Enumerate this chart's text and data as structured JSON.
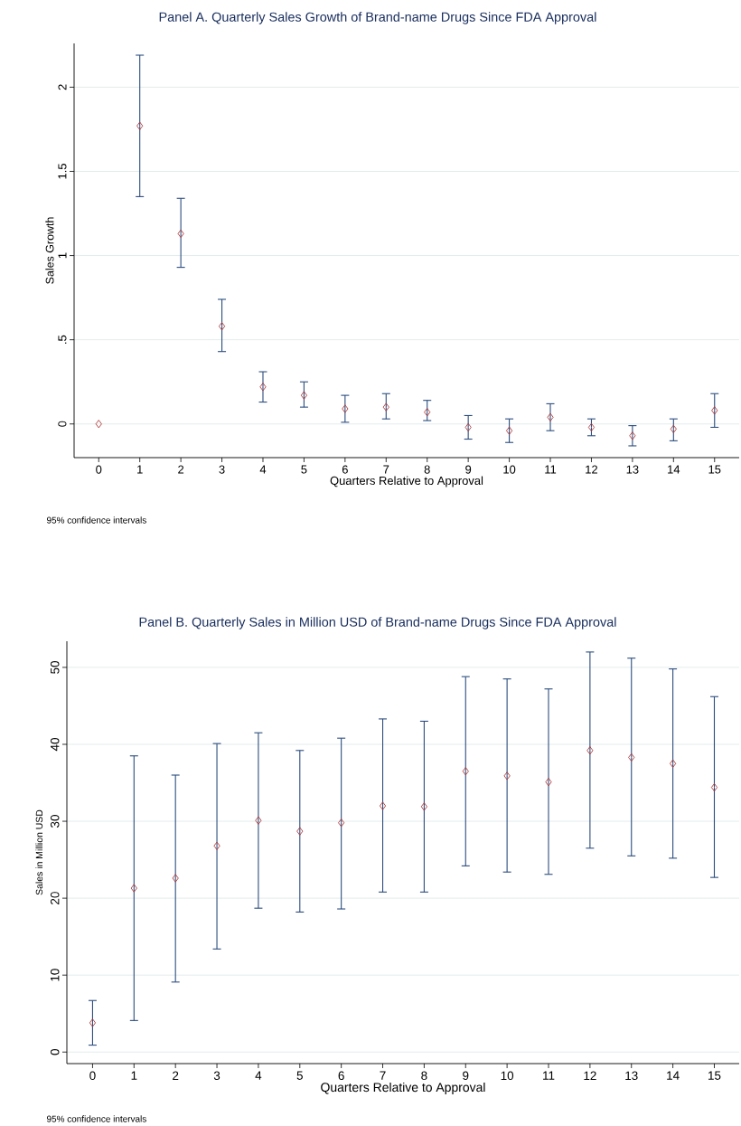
{
  "chart_data": [
    {
      "type": "scatter",
      "title": "Panel A. Quarterly Sales Growth of Brand-name Drugs Since FDA Approval",
      "xlabel": "Quarters Relative to Approval",
      "ylabel": "Sales Growth",
      "annotations": [
        "95% confidence intervals"
      ],
      "x": [
        0,
        1,
        2,
        3,
        4,
        5,
        6,
        7,
        8,
        9,
        10,
        11,
        12,
        13,
        14,
        15
      ],
      "series": [
        {
          "color": "#b03a3a",
          "values": [
            0,
            1.77,
            1.13,
            0.58,
            0.22,
            0.17,
            0.09,
            0.1,
            0.07,
            -0.02,
            -0.04,
            0.04,
            -0.02,
            -0.07,
            -0.03,
            0.08
          ],
          "errors": [
            null,
            [
              1.35,
              2.19
            ],
            [
              0.93,
              1.34
            ],
            [
              0.43,
              0.74
            ],
            [
              0.13,
              0.31
            ],
            [
              0.1,
              0.25
            ],
            [
              0.01,
              0.17
            ],
            [
              0.03,
              0.18
            ],
            [
              0.02,
              0.14
            ],
            [
              -0.09,
              0.05
            ],
            [
              -0.11,
              0.03
            ],
            [
              -0.04,
              0.12
            ],
            [
              -0.07,
              0.03
            ],
            [
              -0.13,
              -0.01
            ],
            [
              -0.1,
              0.03
            ],
            [
              -0.02,
              0.18
            ]
          ]
        }
      ],
      "xlim": [
        -0.6,
        15.6
      ],
      "ylim": [
        -0.2,
        2.26
      ],
      "xticks": [
        0,
        1,
        2,
        3,
        4,
        5,
        6,
        7,
        8,
        9,
        10,
        11,
        12,
        13,
        14,
        15
      ],
      "yticks": [
        0,
        {
          "value": 0.5,
          "label": ".5"
        },
        1,
        1.5,
        2
      ],
      "grid": "y",
      "marker": "diamond"
    },
    {
      "type": "scatter",
      "title": "Panel B. Quarterly Sales in Million USD of Brand-name Drugs Since FDA Approval",
      "xlabel": "Quarters Relative to Approval",
      "ylabel": "Sales in Million USD",
      "annotations": [
        "95% confidence intervals"
      ],
      "x": [
        0,
        1,
        2,
        3,
        4,
        5,
        6,
        7,
        8,
        9,
        10,
        11,
        12,
        13,
        14,
        15
      ],
      "series": [
        {
          "color": "#b03a3a",
          "values": [
            3.8,
            21.3,
            22.6,
            26.8,
            30.1,
            28.7,
            29.8,
            32.0,
            31.9,
            36.5,
            35.9,
            35.1,
            39.2,
            38.3,
            37.5,
            34.4
          ],
          "errors": [
            [
              0.9,
              6.7
            ],
            [
              4.1,
              38.5
            ],
            [
              9.1,
              36.0
            ],
            [
              13.4,
              40.1
            ],
            [
              18.7,
              41.5
            ],
            [
              18.2,
              39.2
            ],
            [
              18.6,
              40.8
            ],
            [
              20.8,
              43.3
            ],
            [
              20.8,
              43.0
            ],
            [
              24.2,
              48.8
            ],
            [
              23.4,
              48.5
            ],
            [
              23.1,
              47.2
            ],
            [
              26.5,
              52.0
            ],
            [
              25.5,
              51.2
            ],
            [
              25.2,
              49.8
            ],
            [
              22.7,
              46.2
            ]
          ]
        }
      ],
      "xlim": [
        -0.62,
        15.6
      ],
      "ylim": [
        -1.5,
        53.4
      ],
      "xticks": [
        0,
        1,
        2,
        3,
        4,
        5,
        6,
        7,
        8,
        9,
        10,
        11,
        12,
        13,
        14,
        15
      ],
      "yticks": [
        0,
        10,
        20,
        30,
        40,
        50
      ],
      "grid": "y",
      "marker": "diamond"
    }
  ]
}
